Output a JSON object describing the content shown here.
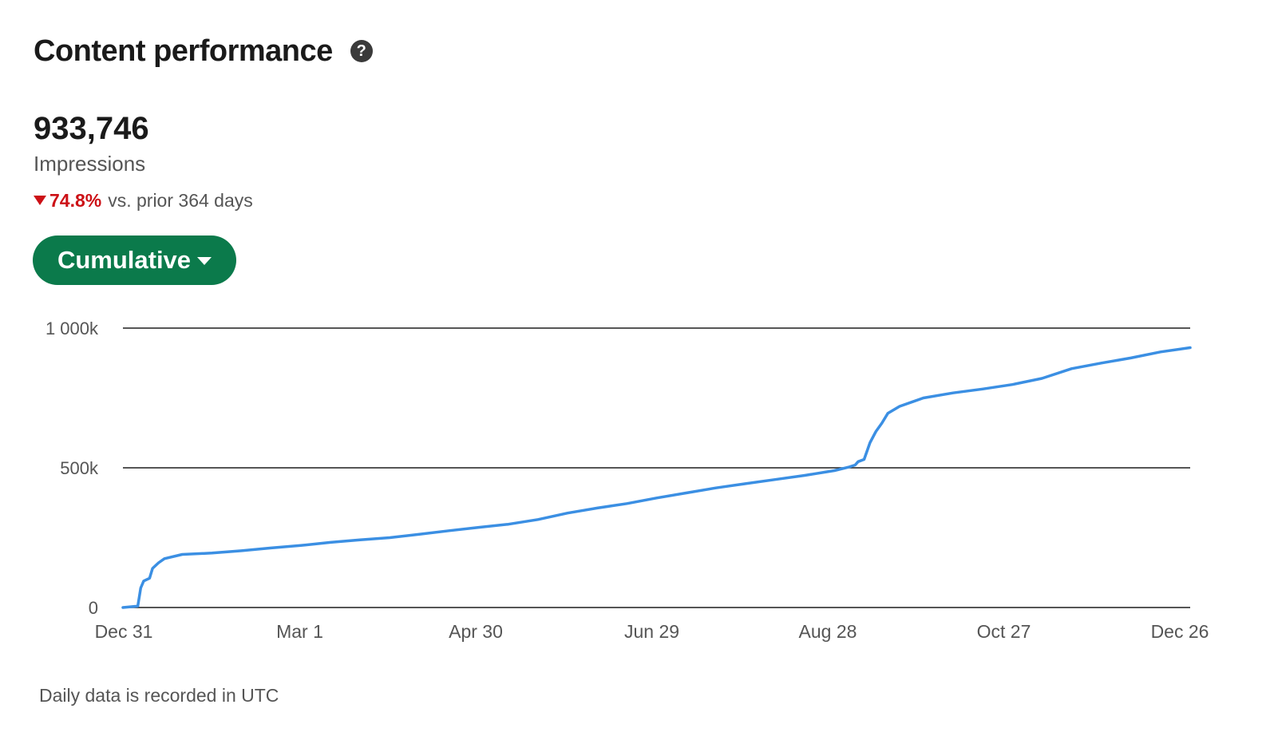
{
  "header": {
    "title": "Content performance",
    "help_icon": "question-circle-icon"
  },
  "metric": {
    "value": "933,746",
    "label": "Impressions",
    "change_pct": "74.8%",
    "change_direction": "down",
    "change_text": "vs. prior 364 days"
  },
  "view_toggle": {
    "label": "Cumulative"
  },
  "footnote": "Daily data is recorded in UTC",
  "colors": {
    "accent_green": "#0b7a4b",
    "negative_red": "#cc1016",
    "line_blue": "#3b8fe3"
  },
  "chart_data": {
    "type": "line",
    "title": "",
    "xlabel": "",
    "ylabel": "",
    "x_ticks": [
      "Dec 31",
      "Mar 1",
      "Apr 30",
      "Jun 29",
      "Aug 28",
      "Oct 27",
      "Dec 26"
    ],
    "y_ticks": [
      "0",
      "500k",
      "1 000k"
    ],
    "y_tick_values": [
      0,
      500000,
      1000000
    ],
    "ylim": [
      0,
      1000000
    ],
    "xlim_days": [
      0,
      360
    ],
    "grid": true,
    "legend": "none",
    "series": [
      {
        "days": [
          0,
          5,
          6,
          7,
          9,
          10,
          12,
          14,
          20,
          30,
          40,
          50,
          60,
          70,
          80,
          90,
          100,
          110,
          120,
          130,
          140,
          150,
          160,
          170,
          180,
          190,
          200,
          210,
          220,
          230,
          240,
          245,
          247,
          248,
          250,
          252,
          254,
          256,
          258,
          262,
          270,
          280,
          290,
          300,
          310,
          320,
          330,
          340,
          350,
          360
        ],
        "values": [
          0,
          5000,
          70000,
          95000,
          105000,
          140000,
          160000,
          175000,
          190000,
          195000,
          203000,
          213000,
          222000,
          233000,
          242000,
          250000,
          262000,
          275000,
          287000,
          298000,
          315000,
          338000,
          356000,
          372000,
          392000,
          410000,
          428000,
          443000,
          458000,
          473000,
          490000,
          503000,
          510000,
          522000,
          530000,
          590000,
          630000,
          660000,
          695000,
          720000,
          750000,
          768000,
          782000,
          798000,
          820000,
          855000,
          875000,
          893000,
          915000,
          930000
        ]
      }
    ]
  }
}
